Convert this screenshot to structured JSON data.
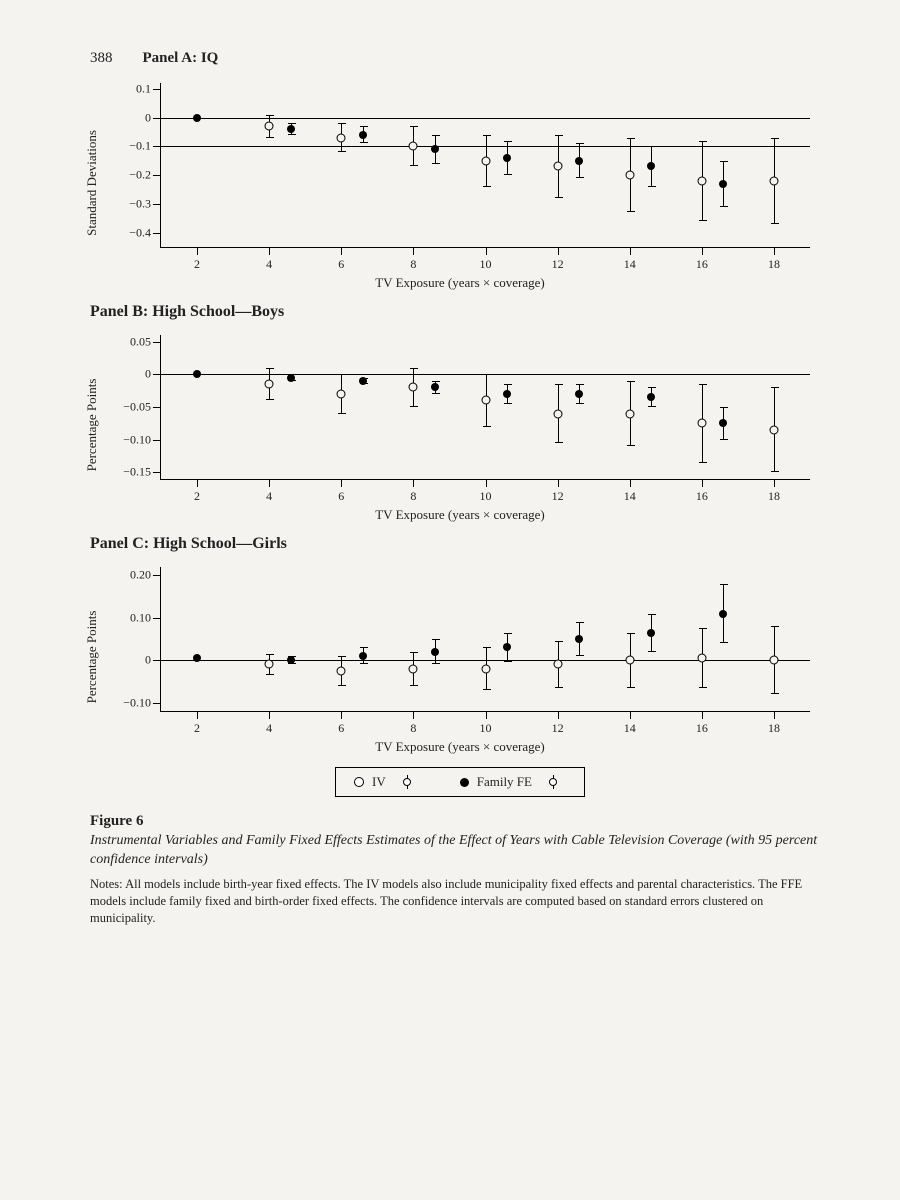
{
  "page_number": "388",
  "colors": {
    "background": "#f5f3ef",
    "ink": "#000000",
    "text": "#222222"
  },
  "typography": {
    "font_family": "Georgia, Times New Roman, serif",
    "axis_label_fontsize": 13,
    "tick_fontsize": 12,
    "panel_title_fontsize": 15,
    "caption_fontsize": 14,
    "notes_fontsize": 12.5
  },
  "common_axes": {
    "xlabel": "TV Exposure (years × coverage)",
    "xlim": [
      1,
      19
    ],
    "xticks": [
      2,
      4,
      6,
      8,
      10,
      12,
      14,
      16,
      18
    ],
    "marker_open": "circle-open",
    "marker_filled": "circle-filled",
    "error_cap_width": 8,
    "line_width": 1.2,
    "hline_at": 0
  },
  "panels": {
    "a": {
      "title": "Panel A: IQ",
      "ylabel": "Standard Deviations",
      "ylim": [
        -0.45,
        0.12
      ],
      "yticks": [
        0.1,
        0,
        -0.1,
        -0.2,
        -0.3,
        -0.4
      ],
      "ytick_labels": [
        "0.1",
        "0",
        "−0.1",
        "−0.2",
        "−0.3",
        "−0.4"
      ],
      "hline_extra": -0.1,
      "iv": {
        "x": [
          2,
          4,
          4.6,
          6,
          6.6,
          8,
          8.6,
          10,
          10.6,
          12,
          12.6,
          14,
          14.6,
          16,
          16.6,
          18
        ],
        "y": [
          0,
          -0.03,
          -0.04,
          -0.07,
          -0.06,
          -0.1,
          -0.11,
          -0.15,
          -0.14,
          -0.17,
          -0.15,
          -0.2,
          -0.17,
          -0.22,
          -0.23,
          -0.22
        ],
        "lo": [
          0,
          -0.07,
          -0.02,
          -0.12,
          -0.03,
          -0.17,
          -0.06,
          -0.24,
          -0.08,
          -0.28,
          -0.09,
          -0.33,
          -0.1,
          -0.36,
          -0.15,
          -0.37
        ],
        "hi": [
          0,
          0.01,
          -0.06,
          -0.02,
          -0.09,
          -0.03,
          -0.16,
          -0.06,
          -0.2,
          -0.06,
          -0.21,
          -0.07,
          -0.24,
          -0.08,
          -0.31,
          -0.07
        ]
      },
      "first_is_filled": true,
      "open_indices": [
        1,
        3,
        5,
        7,
        9,
        11,
        13,
        15
      ],
      "filled_indices": [
        0,
        2,
        4,
        6,
        8,
        10,
        12,
        14
      ]
    },
    "b": {
      "title": "Panel B: High School—Boys",
      "ylabel": "Percentage Points",
      "ylim": [
        -0.16,
        0.06
      ],
      "yticks": [
        0.05,
        0,
        -0.05,
        -0.1,
        -0.15
      ],
      "ytick_labels": [
        "0.05",
        "0",
        "−0.05",
        "−0.10",
        "−0.15"
      ],
      "iv": {
        "x": [
          2,
          4,
          4.6,
          6,
          6.6,
          8,
          8.6,
          10,
          10.6,
          12,
          12.6,
          14,
          14.6,
          16,
          16.6,
          18
        ],
        "y": [
          0,
          -0.015,
          -0.005,
          -0.03,
          -0.01,
          -0.02,
          -0.02,
          -0.04,
          -0.03,
          -0.06,
          -0.03,
          -0.06,
          -0.035,
          -0.075,
          -0.075,
          -0.085
        ],
        "lo": [
          0,
          -0.04,
          0.0,
          -0.06,
          -0.005,
          -0.05,
          -0.01,
          -0.08,
          -0.015,
          -0.105,
          -0.015,
          -0.11,
          -0.02,
          -0.135,
          -0.05,
          -0.15
        ],
        "hi": [
          0,
          0.01,
          -0.01,
          0.0,
          -0.015,
          0.01,
          -0.03,
          0.0,
          -0.045,
          -0.015,
          -0.045,
          -0.01,
          -0.05,
          -0.015,
          -0.1,
          -0.02
        ]
      },
      "first_is_filled": true,
      "open_indices": [
        1,
        3,
        5,
        7,
        9,
        11,
        13,
        15
      ],
      "filled_indices": [
        0,
        2,
        4,
        6,
        8,
        10,
        12,
        14
      ]
    },
    "c": {
      "title": "Panel C: High School—Girls",
      "ylabel": "Percentage Points",
      "ylim": [
        -0.12,
        0.22
      ],
      "yticks": [
        0.2,
        0.1,
        0,
        -0.1
      ],
      "ytick_labels": [
        "0.20",
        "0.10",
        "0",
        "−0.10"
      ],
      "iv": {
        "x": [
          2,
          4,
          4.6,
          6,
          6.6,
          8,
          8.6,
          10,
          10.6,
          12,
          12.6,
          14,
          14.6,
          16,
          16.6,
          18
        ],
        "y": [
          0.005,
          -0.01,
          0.0,
          -0.025,
          0.01,
          -0.02,
          0.02,
          -0.02,
          0.03,
          -0.01,
          0.05,
          0.0,
          0.065,
          0.005,
          0.11,
          0.0
        ],
        "lo": [
          0.005,
          -0.035,
          0.01,
          -0.06,
          0.03,
          -0.06,
          0.05,
          -0.07,
          0.065,
          -0.065,
          0.09,
          -0.065,
          0.11,
          -0.065,
          0.18,
          -0.08
        ],
        "hi": [
          0.005,
          0.015,
          -0.01,
          0.01,
          -0.01,
          0.02,
          -0.01,
          0.03,
          -0.005,
          0.045,
          0.01,
          0.065,
          0.02,
          0.075,
          0.04,
          0.08
        ]
      },
      "first_is_filled": true,
      "open_indices": [
        1,
        3,
        5,
        7,
        9,
        11,
        13,
        15
      ],
      "filled_indices": [
        0,
        2,
        4,
        6,
        8,
        10,
        12,
        14
      ]
    }
  },
  "legend": {
    "iv_label": "IV",
    "ffe_label": "Family FE"
  },
  "caption": {
    "label": "Figure 6",
    "title": "Instrumental Variables and Family Fixed Effects Estimates of the Effect of Years with Cable Television Coverage (with 95 percent confidence intervals)",
    "notes": "Notes: All models include birth-year fixed effects. The IV models also include municipality fixed effects and parental characteristics. The FFE models include family fixed and birth-order fixed effects. The confidence intervals are computed based on standard errors clustered on municipality."
  }
}
